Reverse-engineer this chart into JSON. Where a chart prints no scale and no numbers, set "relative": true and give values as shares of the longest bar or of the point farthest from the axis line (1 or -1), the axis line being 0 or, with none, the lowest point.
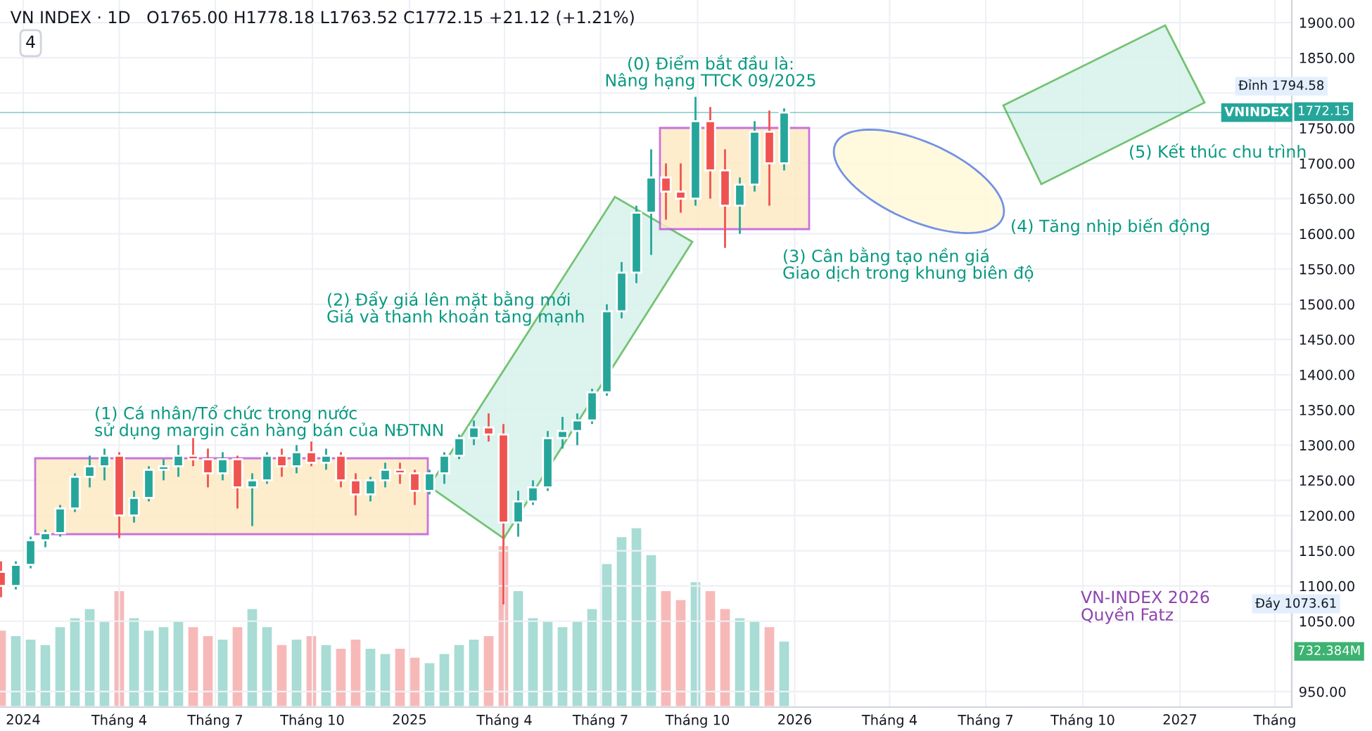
{
  "chart_data": [
    {
      "type": "candlestick",
      "title": "VN INDEX · 1D   O1765.00 H1778.18 L1763.52 C1772.15 +21.12 (+1.21%)",
      "x": [
        "2023-12-11",
        "2023-12-25",
        "2024-01-08",
        "2024-01-22",
        "2024-02-05",
        "2024-02-19",
        "2024-03-04",
        "2024-03-18",
        "2024-04-01",
        "2024-04-15",
        "2024-04-29",
        "2024-05-13",
        "2024-05-27",
        "2024-06-10",
        "2024-06-24",
        "2024-07-08",
        "2024-07-22",
        "2024-08-05",
        "2024-08-19",
        "2024-09-02",
        "2024-09-16",
        "2024-09-30",
        "2024-10-14",
        "2024-10-28",
        "2024-11-11",
        "2024-11-25",
        "2024-12-09",
        "2024-12-23",
        "2025-01-06",
        "2025-01-20",
        "2025-02-03",
        "2025-02-17",
        "2025-03-03",
        "2025-03-17",
        "2025-03-31",
        "2025-04-14",
        "2025-04-28",
        "2025-05-12",
        "2025-05-26",
        "2025-06-09",
        "2025-06-23",
        "2025-07-07",
        "2025-07-21",
        "2025-08-04",
        "2025-08-18",
        "2025-09-01",
        "2025-09-15",
        "2025-09-29",
        "2025-10-13",
        "2025-10-27",
        "2025-11-10",
        "2025-11-24",
        "2025-12-08",
        "2025-12-22"
      ],
      "ohlc": [
        [
          1120,
          1135,
          1084,
          1100
        ],
        [
          1100,
          1135,
          1095,
          1130
        ],
        [
          1130,
          1170,
          1125,
          1165
        ],
        [
          1165,
          1180,
          1155,
          1175
        ],
        [
          1175,
          1215,
          1170,
          1210
        ],
        [
          1210,
          1260,
          1205,
          1255
        ],
        [
          1255,
          1285,
          1240,
          1270
        ],
        [
          1270,
          1295,
          1250,
          1285
        ],
        [
          1285,
          1290,
          1168,
          1200
        ],
        [
          1200,
          1235,
          1190,
          1225
        ],
        [
          1225,
          1270,
          1220,
          1265
        ],
        [
          1265,
          1280,
          1250,
          1270
        ],
        [
          1270,
          1300,
          1255,
          1285
        ],
        [
          1285,
          1310,
          1270,
          1280
        ],
        [
          1280,
          1295,
          1240,
          1260
        ],
        [
          1260,
          1290,
          1250,
          1280
        ],
        [
          1280,
          1285,
          1210,
          1240
        ],
        [
          1240,
          1260,
          1185,
          1250
        ],
        [
          1250,
          1290,
          1245,
          1285
        ],
        [
          1285,
          1295,
          1255,
          1270
        ],
        [
          1270,
          1300,
          1260,
          1290
        ],
        [
          1290,
          1305,
          1270,
          1275
        ],
        [
          1275,
          1295,
          1265,
          1285
        ],
        [
          1285,
          1290,
          1240,
          1250
        ],
        [
          1250,
          1260,
          1200,
          1230
        ],
        [
          1230,
          1255,
          1220,
          1250
        ],
        [
          1250,
          1275,
          1240,
          1265
        ],
        [
          1265,
          1275,
          1245,
          1260
        ],
        [
          1260,
          1265,
          1215,
          1235
        ],
        [
          1235,
          1265,
          1230,
          1260
        ],
        [
          1260,
          1290,
          1245,
          1285
        ],
        [
          1285,
          1315,
          1280,
          1310
        ],
        [
          1310,
          1335,
          1300,
          1325
        ],
        [
          1325,
          1345,
          1305,
          1315
        ],
        [
          1315,
          1330,
          1073.61,
          1190
        ],
        [
          1190,
          1235,
          1170,
          1220
        ],
        [
          1220,
          1250,
          1215,
          1240
        ],
        [
          1240,
          1320,
          1235,
          1310
        ],
        [
          1310,
          1340,
          1295,
          1320
        ],
        [
          1320,
          1345,
          1300,
          1335
        ],
        [
          1335,
          1380,
          1330,
          1375
        ],
        [
          1375,
          1500,
          1370,
          1490
        ],
        [
          1490,
          1560,
          1480,
          1545
        ],
        [
          1545,
          1640,
          1530,
          1630
        ],
        [
          1630,
          1720,
          1570,
          1680
        ],
        [
          1680,
          1700,
          1620,
          1660
        ],
        [
          1660,
          1700,
          1630,
          1650
        ],
        [
          1650,
          1794.58,
          1640,
          1760
        ],
        [
          1760,
          1780,
          1650,
          1690
        ],
        [
          1690,
          1720,
          1580,
          1640
        ],
        [
          1640,
          1680,
          1600,
          1670
        ],
        [
          1670,
          1760,
          1660,
          1745
        ],
        [
          1745,
          1775,
          1640,
          1700
        ],
        [
          1700,
          1778.18,
          1690,
          1772.15
        ]
      ],
      "xlim": [
        "2023-12-10",
        "2027-04-17"
      ],
      "xticks": [
        {
          "value": "2024-01-01",
          "label": "2024"
        },
        {
          "value": "2024-04-01",
          "label": "Tháng 4"
        },
        {
          "value": "2024-07-01",
          "label": "Tháng 7"
        },
        {
          "value": "2024-10-01",
          "label": "Tháng 10"
        },
        {
          "value": "2025-01-01",
          "label": "2025"
        },
        {
          "value": "2025-04-01",
          "label": "Tháng 4"
        },
        {
          "value": "2025-07-01",
          "label": "Tháng 7"
        },
        {
          "value": "2025-10-01",
          "label": "Tháng 10"
        },
        {
          "value": "2026-01-01",
          "label": "2026"
        },
        {
          "value": "2026-04-01",
          "label": "Tháng 4"
        },
        {
          "value": "2026-07-01",
          "label": "Tháng 7"
        },
        {
          "value": "2026-10-01",
          "label": "Tháng 10"
        },
        {
          "value": "2027-01-01",
          "label": "2027"
        },
        {
          "value": "2027-04-01",
          "label": "Tháng"
        }
      ],
      "ylim": [
        928,
        1932
      ],
      "yticks": [
        {
          "value": 950,
          "label": "950.00"
        },
        {
          "value": 1050,
          "label": "1050.00"
        },
        {
          "value": 1100,
          "label": "1100.00"
        },
        {
          "value": 1150,
          "label": "1150.00"
        },
        {
          "value": 1200,
          "label": "1200.00"
        },
        {
          "value": 1250,
          "label": "1250.00"
        },
        {
          "value": 1300,
          "label": "1300.00"
        },
        {
          "value": 1350,
          "label": "1350.00"
        },
        {
          "value": 1400,
          "label": "1400.00"
        },
        {
          "value": 1450,
          "label": "1450.00"
        },
        {
          "value": 1500,
          "label": "1500.00"
        },
        {
          "value": 1550,
          "label": "1550.00"
        },
        {
          "value": 1600,
          "label": "1600.00"
        },
        {
          "value": 1650,
          "label": "1650.00"
        },
        {
          "value": 1700,
          "label": "1700.00"
        },
        {
          "value": 1750,
          "label": "1750.00"
        },
        {
          "value": 1800,
          "label": null
        },
        {
          "value": 1850,
          "label": "1850.00"
        },
        {
          "value": 1900,
          "label": "1900.00"
        }
      ],
      "grid": true,
      "ref_lines": [
        {
          "axis": "y",
          "value": 1772.15,
          "label": "VNINDEX",
          "color": "#26a69a"
        }
      ],
      "annotations": [
        "(0) Điểm bắt đầu là:\nNâng hạng TTCK 09/2025",
        "(1) Cá nhân/Tổ chức trong nước\nsử dụng margin căn hàng bán của NĐTNN",
        "(2) Đẩy giá lên mặt bằng mới\nGiá và thanh khoản tăng mạnh",
        "(3) Cân bằng tạo nền giá\nGiao dịch trong khung biên độ",
        "(4) Tăng nhịp biến động",
        "(5) Kết thúc chu trình",
        "VN-INDEX 2026\nQuyền Fatz",
        "4",
        "Đỉnh 1794.58",
        "Đáy 1073.61",
        "1772.15"
      ]
    },
    {
      "type": "bar",
      "relative": true,
      "tick_labels": false,
      "x": [
        "2023-12-11",
        "2023-12-25",
        "2024-01-08",
        "2024-01-22",
        "2024-02-05",
        "2024-02-19",
        "2024-03-04",
        "2024-03-18",
        "2024-04-01",
        "2024-04-15",
        "2024-04-29",
        "2024-05-13",
        "2024-05-27",
        "2024-06-10",
        "2024-06-24",
        "2024-07-08",
        "2024-07-22",
        "2024-08-05",
        "2024-08-19",
        "2024-09-02",
        "2024-09-16",
        "2024-09-30",
        "2024-10-14",
        "2024-10-28",
        "2024-11-11",
        "2024-11-25",
        "2024-12-09",
        "2024-12-23",
        "2025-01-06",
        "2025-01-20",
        "2025-02-03",
        "2025-02-17",
        "2025-03-03",
        "2025-03-17",
        "2025-03-31",
        "2025-04-14",
        "2025-04-28",
        "2025-05-12",
        "2025-05-26",
        "2025-06-09",
        "2025-06-23",
        "2025-07-07",
        "2025-07-21",
        "2025-08-04",
        "2025-08-18",
        "2025-09-01",
        "2025-09-15",
        "2025-09-29",
        "2025-10-13",
        "2025-10-27",
        "2025-11-10",
        "2025-11-24",
        "2025-12-08",
        "2025-12-22"
      ],
      "xlim": [
        "2023-12-10",
        "2027-04-17"
      ],
      "values": [
        0.43,
        0.4,
        0.38,
        0.35,
        0.45,
        0.5,
        0.55,
        0.48,
        0.65,
        0.5,
        0.43,
        0.45,
        0.48,
        0.45,
        0.4,
        0.38,
        0.45,
        0.55,
        0.45,
        0.35,
        0.38,
        0.4,
        0.35,
        0.33,
        0.38,
        0.33,
        0.3,
        0.33,
        0.28,
        0.25,
        0.3,
        0.35,
        0.38,
        0.4,
        0.9,
        0.65,
        0.5,
        0.48,
        0.45,
        0.48,
        0.55,
        0.8,
        0.95,
        1,
        0.85,
        0.65,
        0.6,
        0.7,
        0.65,
        0.55,
        0.5,
        0.48,
        0.45,
        0.37
      ],
      "colors": [
        "#f7b9b8",
        "#a8dcd5",
        "#a8dcd5",
        "#a8dcd5",
        "#a8dcd5",
        "#a8dcd5",
        "#a8dcd5",
        "#a8dcd5",
        "#f7b9b8",
        "#a8dcd5",
        "#a8dcd5",
        "#a8dcd5",
        "#a8dcd5",
        "#f7b9b8",
        "#f7b9b8",
        "#a8dcd5",
        "#f7b9b8",
        "#a8dcd5",
        "#a8dcd5",
        "#f7b9b8",
        "#a8dcd5",
        "#f7b9b8",
        "#a8dcd5",
        "#f7b9b8",
        "#f7b9b8",
        "#a8dcd5",
        "#a8dcd5",
        "#f7b9b8",
        "#f7b9b8",
        "#a8dcd5",
        "#a8dcd5",
        "#a8dcd5",
        "#a8dcd5",
        "#f7b9b8",
        "#f7b9b8",
        "#a8dcd5",
        "#a8dcd5",
        "#a8dcd5",
        "#a8dcd5",
        "#a8dcd5",
        "#a8dcd5",
        "#a8dcd5",
        "#a8dcd5",
        "#a8dcd5",
        "#a8dcd5",
        "#f7b9b8",
        "#f7b9b8",
        "#a8dcd5",
        "#f7b9b8",
        "#f7b9b8",
        "#a8dcd5",
        "#a8dcd5",
        "#f7b9b8",
        "#a8dcd5"
      ],
      "annotations": [
        "732.384M"
      ]
    }
  ]
}
